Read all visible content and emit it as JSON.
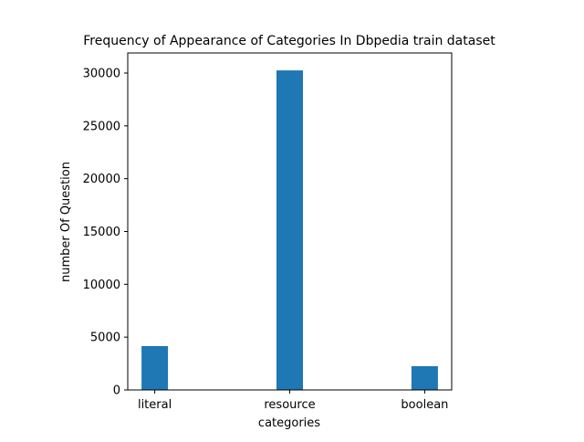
{
  "chart_data": {
    "type": "bar",
    "title": "Frequency of Appearance of Categories In Dbpedia train dataset",
    "xlabel": "categories",
    "ylabel": "number Of Question",
    "categories": [
      "literal",
      "resource",
      "boolean"
    ],
    "values": [
      4150,
      30250,
      2250
    ],
    "ylim": [
      0,
      31900
    ],
    "yticks": [
      0,
      5000,
      10000,
      15000,
      20000,
      25000,
      30000
    ],
    "grid": false,
    "bar_color": "#1f77b4"
  }
}
